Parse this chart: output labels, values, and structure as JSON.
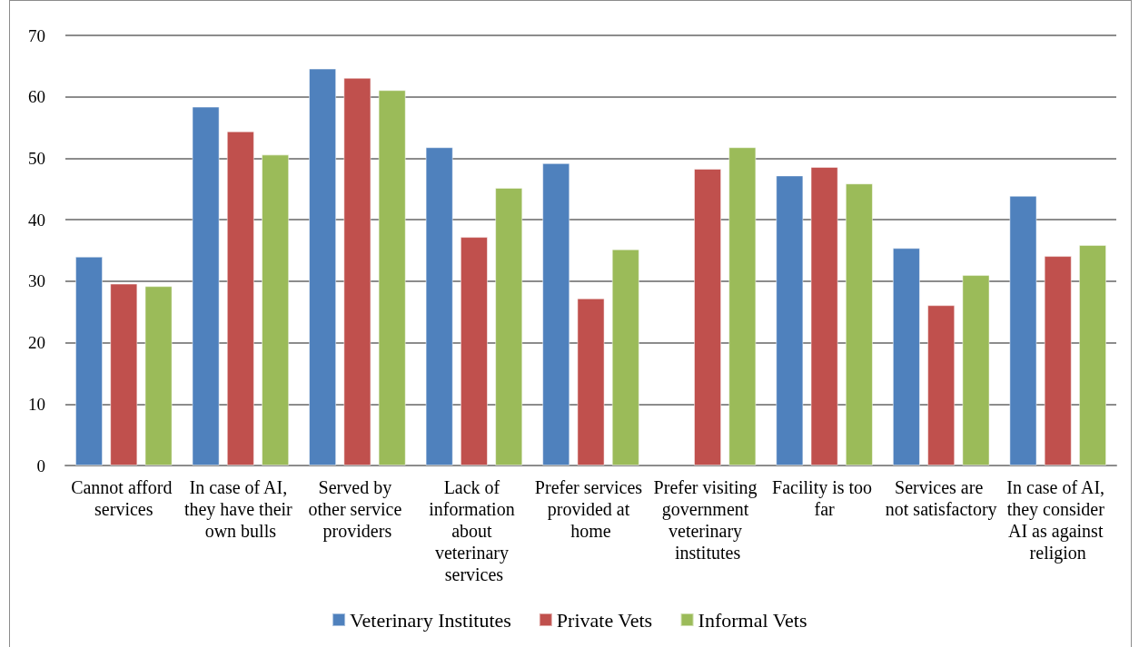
{
  "chart_data": {
    "type": "bar",
    "categories": [
      "Cannot afford services",
      "In case of AI, they have their own bulls",
      "Served by other service providers",
      "Lack of information about veterinary services",
      "Prefer services provided at home",
      "Prefer visiting government veterinary institutes",
      "Facility is too far",
      "Services are not satisfactory",
      "In case of AI, they consider AI as against religion"
    ],
    "series": [
      {
        "name": "Veterinary Institutes",
        "color": "#4f81bd",
        "values": [
          34.0,
          58.4,
          64.6,
          51.8,
          49.2,
          null,
          47.2,
          35.4,
          43.9
        ]
      },
      {
        "name": "Private Vets",
        "color": "#c0504d",
        "values": [
          29.6,
          54.4,
          63.1,
          37.2,
          27.2,
          48.3,
          48.6,
          26.1,
          34.1
        ]
      },
      {
        "name": "Informal Vets",
        "color": "#9bbb59",
        "values": [
          29.2,
          50.6,
          61.1,
          45.2,
          35.2,
          51.8,
          45.9,
          31.0,
          35.9
        ]
      }
    ],
    "ylim": [
      0,
      70
    ],
    "yticks": [
      0,
      10,
      20,
      30,
      40,
      50,
      60,
      70
    ],
    "grid": "y",
    "legend": "bottom"
  }
}
